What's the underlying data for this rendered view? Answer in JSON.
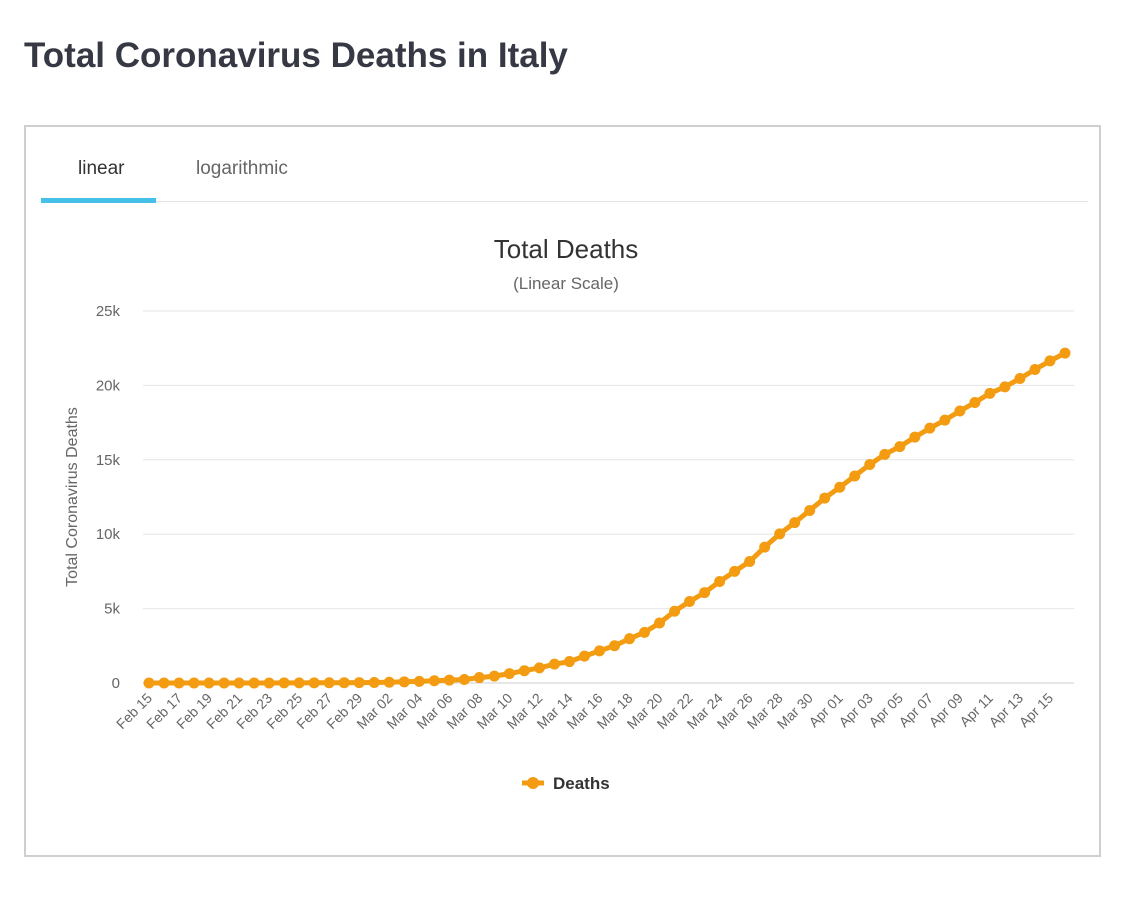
{
  "page": {
    "title": "Total Coronavirus Deaths in Italy"
  },
  "tabs": [
    {
      "label": "linear",
      "active": true
    },
    {
      "label": "logarithmic",
      "active": false
    }
  ],
  "colors": {
    "series": "#f39c12",
    "tab_active": "#45c0e6",
    "grid": "#e6e6e6"
  },
  "chart_data": {
    "type": "line",
    "title": "Total Deaths",
    "subtitle": "(Linear Scale)",
    "ylabel": "Total Coronavirus Deaths",
    "xlabel": "",
    "ylim": [
      0,
      25000
    ],
    "yticks": [
      0,
      5000,
      10000,
      15000,
      20000,
      25000
    ],
    "ytick_labels": [
      "0",
      "5k",
      "10k",
      "15k",
      "20k",
      "25k"
    ],
    "grid": true,
    "legend": "bottom-center",
    "x_tick_labels": [
      "Feb 15",
      "Feb 17",
      "Feb 19",
      "Feb 21",
      "Feb 23",
      "Feb 25",
      "Feb 27",
      "Feb 29",
      "Mar 02",
      "Mar 04",
      "Mar 06",
      "Mar 08",
      "Mar 10",
      "Mar 12",
      "Mar 14",
      "Mar 16",
      "Mar 18",
      "Mar 20",
      "Mar 22",
      "Mar 24",
      "Mar 26",
      "Mar 28",
      "Mar 30",
      "Apr 01",
      "Apr 03",
      "Apr 05",
      "Apr 07",
      "Apr 09",
      "Apr 11",
      "Apr 13",
      "Apr 15"
    ],
    "x": [
      "Feb 15",
      "Feb 16",
      "Feb 17",
      "Feb 18",
      "Feb 19",
      "Feb 20",
      "Feb 21",
      "Feb 22",
      "Feb 23",
      "Feb 24",
      "Feb 25",
      "Feb 26",
      "Feb 27",
      "Feb 28",
      "Feb 29",
      "Mar 01",
      "Mar 02",
      "Mar 03",
      "Mar 04",
      "Mar 05",
      "Mar 06",
      "Mar 07",
      "Mar 08",
      "Mar 09",
      "Mar 10",
      "Mar 11",
      "Mar 12",
      "Mar 13",
      "Mar 14",
      "Mar 15",
      "Mar 16",
      "Mar 17",
      "Mar 18",
      "Mar 19",
      "Mar 20",
      "Mar 21",
      "Mar 22",
      "Mar 23",
      "Mar 24",
      "Mar 25",
      "Mar 26",
      "Mar 27",
      "Mar 28",
      "Mar 29",
      "Mar 30",
      "Mar 31",
      "Apr 01",
      "Apr 02",
      "Apr 03",
      "Apr 04",
      "Apr 05",
      "Apr 06",
      "Apr 07",
      "Apr 08",
      "Apr 09",
      "Apr 10",
      "Apr 11",
      "Apr 12",
      "Apr 13",
      "Apr 14",
      "Apr 15",
      "Apr 16"
    ],
    "series": [
      {
        "name": "Deaths",
        "color": "#f39c12",
        "values": [
          0,
          0,
          0,
          0,
          0,
          0,
          1,
          2,
          3,
          7,
          10,
          12,
          17,
          21,
          29,
          34,
          52,
          79,
          107,
          148,
          197,
          233,
          366,
          463,
          631,
          827,
          1016,
          1266,
          1441,
          1809,
          2158,
          2503,
          2978,
          3405,
          4032,
          4825,
          5476,
          6077,
          6820,
          7503,
          8165,
          9134,
          10023,
          10779,
          11591,
          12428,
          13155,
          13915,
          14681,
          15362,
          15887,
          16523,
          17127,
          17669,
          18279,
          18849,
          19468,
          19899,
          20465,
          21067,
          21645,
          22170
        ]
      }
    ]
  }
}
